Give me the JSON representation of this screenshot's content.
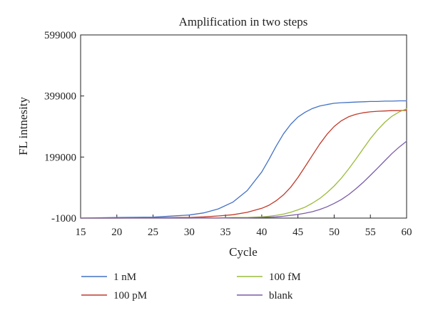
{
  "chart_data": {
    "type": "line",
    "title": "Amplification in two steps",
    "xlabel": "Cycle",
    "ylabel": "FL intnesity",
    "xlim": [
      15,
      60
    ],
    "ylim": [
      -1000,
      599000
    ],
    "x_ticks": [
      "15",
      "20",
      "25",
      "30",
      "35",
      "40",
      "45",
      "50",
      "55",
      "60"
    ],
    "y_ticks": [
      "-1000",
      "199000",
      "399000",
      "599000"
    ],
    "grid": false,
    "legend_position": "bottom",
    "x": [
      15,
      20,
      25,
      30,
      32,
      34,
      36,
      38,
      40,
      41,
      42,
      43,
      44,
      45,
      46,
      47,
      48,
      49,
      50,
      51,
      52,
      53,
      54,
      55,
      56,
      57,
      58,
      59,
      60
    ],
    "series": [
      {
        "name": "1 nM",
        "color": "#4472c4",
        "values": [
          -1000,
          1000,
          2000,
          9000,
          16000,
          29000,
          51000,
          89000,
          150000,
          191000,
          235000,
          275000,
          306000,
          330000,
          346000,
          358000,
          366000,
          371000,
          375000,
          377000,
          378000,
          379000,
          380000,
          381000,
          381000,
          382000,
          382000,
          383000,
          383000
        ]
      },
      {
        "name": "100 pM",
        "color": "#c0392b",
        "values": [
          -1000,
          -1000,
          0,
          1000,
          3000,
          6000,
          10000,
          18000,
          31000,
          41000,
          56000,
          75000,
          100000,
          132000,
          168000,
          205000,
          241000,
          273000,
          299000,
          318000,
          331000,
          339000,
          344000,
          347000,
          349000,
          350000,
          351000,
          351000,
          352000
        ]
      },
      {
        "name": "100 fM",
        "color": "#9bbb3b",
        "values": [
          -1000,
          -1000,
          -1000,
          -1000,
          0,
          0,
          1000,
          1000,
          3000,
          5000,
          8000,
          12000,
          18000,
          26000,
          35000,
          48000,
          63000,
          82000,
          104000,
          130000,
          160000,
          192000,
          226000,
          259000,
          288000,
          313000,
          333000,
          347000,
          357000
        ]
      },
      {
        "name": "blank",
        "color": "#7a5ca8",
        "values": [
          -1000,
          -1000,
          -1000,
          -1000,
          -1000,
          -1000,
          0,
          0,
          1000,
          2000,
          3000,
          5000,
          8000,
          11000,
          15000,
          20000,
          27000,
          36000,
          47000,
          60000,
          76000,
          95000,
          116000,
          139000,
          163000,
          187000,
          211000,
          232000,
          251000
        ]
      }
    ]
  }
}
